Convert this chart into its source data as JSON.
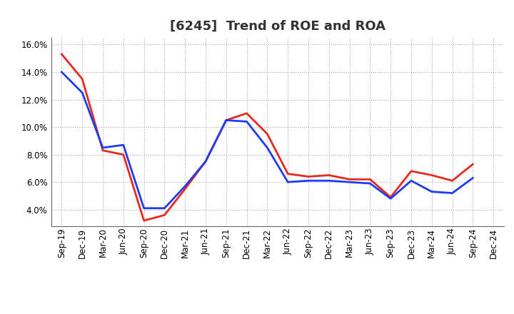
{
  "title": "[6245]  Trend of ROE and ROA",
  "labels": [
    "Sep-19",
    "Dec-19",
    "Mar-20",
    "Jun-20",
    "Sep-20",
    "Dec-20",
    "Mar-21",
    "Jun-21",
    "Sep-21",
    "Dec-21",
    "Mar-22",
    "Jun-22",
    "Sep-22",
    "Dec-22",
    "Mar-23",
    "Jun-23",
    "Sep-23",
    "Dec-23",
    "Mar-24",
    "Jun-24",
    "Sep-24",
    "Dec-24"
  ],
  "ROE": [
    15.3,
    13.5,
    8.3,
    8.0,
    3.2,
    3.6,
    5.5,
    7.5,
    10.5,
    11.0,
    9.5,
    6.6,
    6.4,
    6.5,
    6.2,
    6.2,
    4.9,
    6.8,
    6.5,
    6.1,
    7.3,
    null
  ],
  "ROA": [
    14.0,
    12.5,
    8.5,
    8.7,
    4.1,
    4.1,
    5.7,
    7.5,
    10.5,
    10.4,
    8.5,
    6.0,
    6.1,
    6.1,
    6.0,
    5.9,
    4.8,
    6.1,
    5.3,
    5.2,
    6.3,
    null
  ],
  "roe_color": "#e8291c",
  "roa_color": "#1f3cf5",
  "background_color": "#ffffff",
  "grid_color": "#aaaaaa",
  "ylim": [
    2.8,
    16.5
  ],
  "yticks": [
    4.0,
    6.0,
    8.0,
    10.0,
    12.0,
    14.0,
    16.0
  ],
  "line_width": 2.0,
  "title_fontsize": 13,
  "tick_fontsize": 8.5,
  "legend_fontsize": 10
}
